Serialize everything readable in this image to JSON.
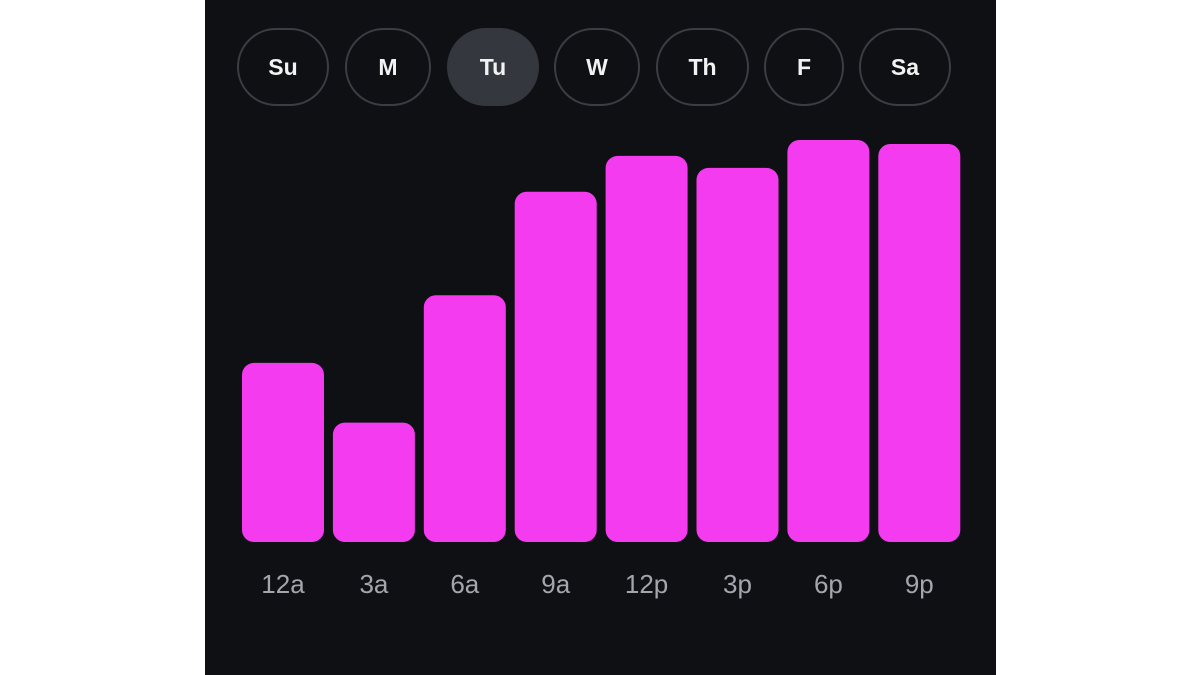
{
  "days": {
    "items": [
      {
        "label": "Su",
        "selected": false
      },
      {
        "label": "M",
        "selected": false
      },
      {
        "label": "Tu",
        "selected": true
      },
      {
        "label": "W",
        "selected": false
      },
      {
        "label": "Th",
        "selected": false
      },
      {
        "label": "F",
        "selected": false
      },
      {
        "label": "Sa",
        "selected": false
      }
    ]
  },
  "colors": {
    "background": "#0f1014",
    "bar": "#f43bf0",
    "pill_border": "#3a3d43",
    "pill_selected": "#34373d",
    "label": "#a3a6ac"
  },
  "chart_data": {
    "type": "bar",
    "categories": [
      "12a",
      "3a",
      "6a",
      "9a",
      "12p",
      "3p",
      "6p",
      "9p"
    ],
    "values": [
      45,
      30,
      62,
      88,
      97,
      94,
      101,
      100
    ],
    "ylim": [
      0,
      101
    ],
    "grid": false,
    "title": "",
    "xlabel": "",
    "ylabel": ""
  }
}
